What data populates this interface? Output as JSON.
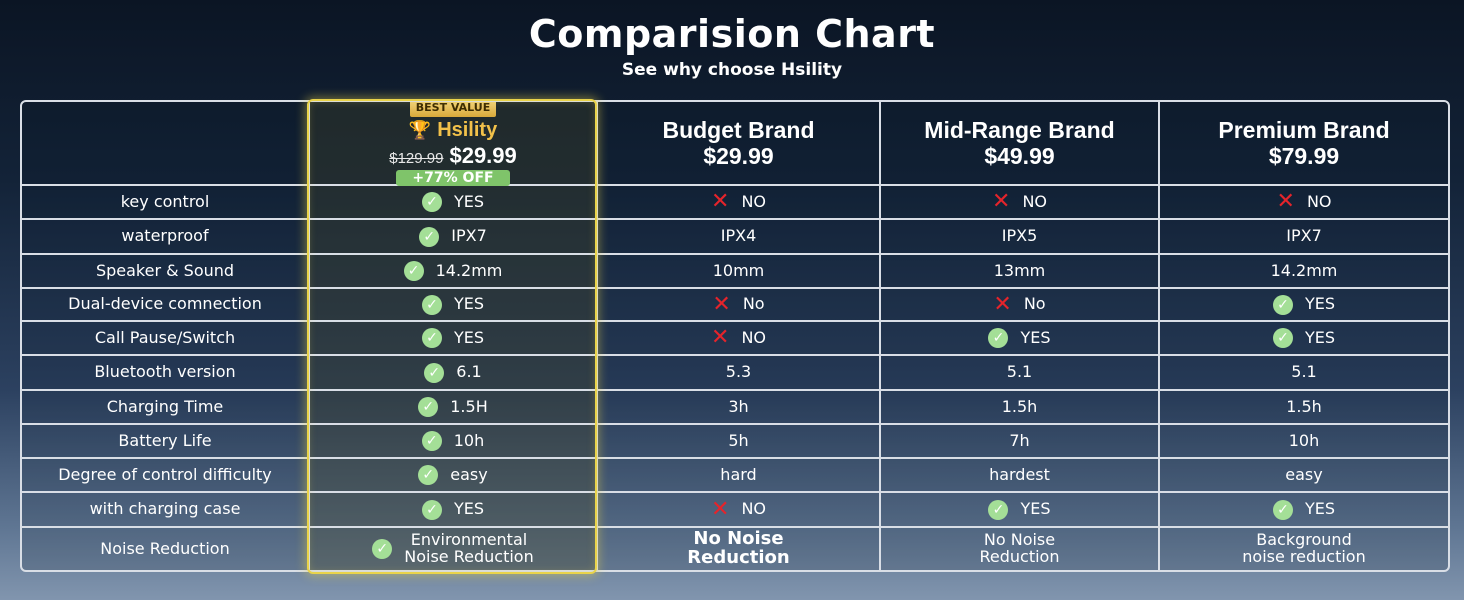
{
  "title": "Comparision Chart",
  "subtitle": "See why choose Hsility",
  "hsility": {
    "badge": "BEST VALUE",
    "name": "Hsility",
    "old_price": "$129.99",
    "new_price": "$29.99",
    "discount": "+77% OFF"
  },
  "brands": [
    {
      "name": "Budget Brand",
      "price": "$29.99"
    },
    {
      "name": "Mid-Range Brand",
      "price": "$49.99"
    },
    {
      "name": "Premium Brand",
      "price": "$79.99"
    }
  ],
  "icons": {
    "check": "check-circle-icon",
    "cross": "cross-icon",
    "trophy": "trophy-icon"
  },
  "colors": {
    "check": "#a4df97",
    "cross": "#e5242b",
    "highlight_border": "#e9d34a",
    "discount_bg": "#7fc46a"
  },
  "rows": [
    {
      "feature": "key control",
      "cells": [
        {
          "text": "YES",
          "mark": "check"
        },
        {
          "text": "NO",
          "mark": "cross"
        },
        {
          "text": "NO",
          "mark": "cross"
        },
        {
          "text": "NO",
          "mark": "cross"
        }
      ]
    },
    {
      "feature": "waterproof",
      "cells": [
        {
          "text": "IPX7",
          "mark": "check"
        },
        {
          "text": "IPX4",
          "mark": ""
        },
        {
          "text": "IPX5",
          "mark": ""
        },
        {
          "text": "IPX7",
          "mark": ""
        }
      ]
    },
    {
      "feature": "Speaker & Sound",
      "cells": [
        {
          "text": "14.2mm",
          "mark": "check"
        },
        {
          "text": "10mm",
          "mark": ""
        },
        {
          "text": "13mm",
          "mark": ""
        },
        {
          "text": "14.2mm",
          "mark": ""
        }
      ]
    },
    {
      "feature": "Dual-device comnection",
      "cells": [
        {
          "text": "YES",
          "mark": "check"
        },
        {
          "text": "No",
          "mark": "cross"
        },
        {
          "text": "No",
          "mark": "cross"
        },
        {
          "text": "YES",
          "mark": "check"
        }
      ]
    },
    {
      "feature": "Call Pause/Switch",
      "cells": [
        {
          "text": "YES",
          "mark": "check"
        },
        {
          "text": "NO",
          "mark": "cross"
        },
        {
          "text": "YES",
          "mark": "check"
        },
        {
          "text": "YES",
          "mark": "check"
        }
      ]
    },
    {
      "feature": "Bluetooth version",
      "cells": [
        {
          "text": "6.1",
          "mark": "check"
        },
        {
          "text": "5.3",
          "mark": ""
        },
        {
          "text": "5.1",
          "mark": ""
        },
        {
          "text": "5.1",
          "mark": ""
        }
      ]
    },
    {
      "feature": "Charging Time",
      "cells": [
        {
          "text": "1.5H",
          "mark": "check"
        },
        {
          "text": "3h",
          "mark": ""
        },
        {
          "text": "1.5h",
          "mark": ""
        },
        {
          "text": "1.5h",
          "mark": ""
        }
      ]
    },
    {
      "feature": "Battery Life",
      "cells": [
        {
          "text": "10h",
          "mark": "check"
        },
        {
          "text": "5h",
          "mark": ""
        },
        {
          "text": "7h",
          "mark": ""
        },
        {
          "text": "10h",
          "mark": ""
        }
      ]
    },
    {
      "feature": "Degree of control difficulty",
      "cells": [
        {
          "text": "easy",
          "mark": "check"
        },
        {
          "text": "hard",
          "mark": ""
        },
        {
          "text": "hardest",
          "mark": ""
        },
        {
          "text": "easy",
          "mark": ""
        }
      ]
    },
    {
      "feature": "with charging case",
      "cells": [
        {
          "text": "YES",
          "mark": "check"
        },
        {
          "text": "NO",
          "mark": "cross"
        },
        {
          "text": "YES",
          "mark": "check"
        },
        {
          "text": "YES",
          "mark": "check"
        }
      ]
    },
    {
      "feature": "Noise Reduction",
      "cells": [
        {
          "lines": [
            "Environmental",
            "Noise Reduction"
          ],
          "mark": "check"
        },
        {
          "lines": [
            "No Noise",
            "Reduction"
          ],
          "mark": "",
          "bold": true
        },
        {
          "lines": [
            "No Noise",
            "Reduction"
          ],
          "mark": ""
        },
        {
          "lines": [
            "Background",
            "noise reduction"
          ],
          "mark": ""
        }
      ]
    }
  ]
}
